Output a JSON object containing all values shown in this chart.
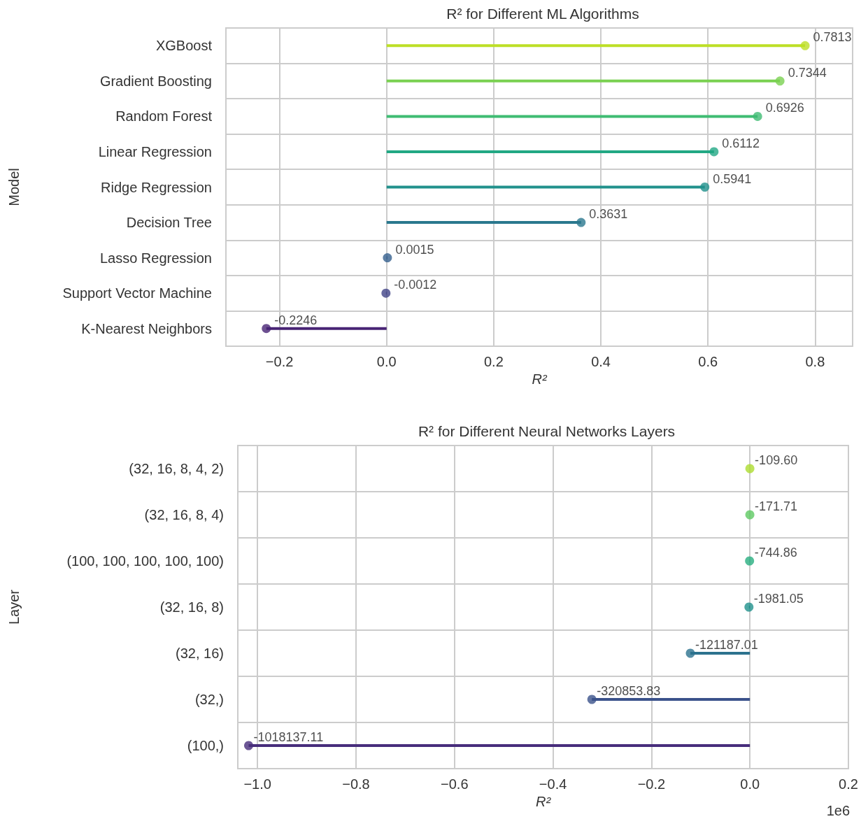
{
  "chart_data": [
    {
      "type": "lollipop",
      "orientation": "horizontal",
      "title": "R² for Different ML Algorithms",
      "xlabel": "R²",
      "ylabel": "Model",
      "categories": [
        "XGBoost",
        "Gradient Boosting",
        "Random Forest",
        "Linear Regression",
        "Ridge Regression",
        "Decision Tree",
        "Lasso Regression",
        "Support Vector Machine",
        "K-Nearest Neighbors"
      ],
      "values": [
        0.7813,
        0.7344,
        0.6926,
        0.6112,
        0.5941,
        0.3631,
        0.0015,
        -0.0012,
        -0.2246
      ],
      "value_labels": [
        "0.7813",
        "0.7344",
        "0.6926",
        "0.6112",
        "0.5941",
        "0.3631",
        "0.0015",
        "-0.0012",
        "-0.2246"
      ],
      "colors": [
        "#bddf26",
        "#7ad151",
        "#3fbc73",
        "#22a884",
        "#21918c",
        "#2a788e",
        "#355f8d",
        "#414487",
        "#482475"
      ],
      "xlim": [
        -0.3,
        0.87
      ],
      "xticks": [
        {
          "value": -0.2,
          "label": "−0.2"
        },
        {
          "value": 0,
          "label": "0.0"
        },
        0.2,
        0.4,
        0.6,
        0.8
      ],
      "grid": true,
      "marker": "circle"
    },
    {
      "type": "lollipop",
      "orientation": "horizontal",
      "title": "R² for Different Neural Networks Layers",
      "xlabel": "R²",
      "ylabel": "Layer",
      "categories": [
        "(32, 16, 8, 4, 2)",
        "(32, 16, 8, 4)",
        "(100, 100, 100, 100, 100)",
        "(32, 16, 8)",
        "(32, 16)",
        "(32,)",
        "(100,)"
      ],
      "values": [
        -0.00011,
        -0.00017,
        -0.00074,
        -0.002,
        -0.121,
        -0.321,
        -1.018
      ],
      "colors": [
        "#addc30",
        "#5ec962",
        "#28ae80",
        "#21918c",
        "#2c728e",
        "#3b528b",
        "#472d7b"
      ],
      "xlim": [
        -1.04,
        0.2
      ],
      "xticks": [
        {
          "value": -1.0,
          "label": "−1.0"
        },
        {
          "value": -0.8,
          "label": "−0.8"
        },
        {
          "value": -0.6,
          "label": "−0.6"
        },
        {
          "value": -0.4,
          "label": "−0.4"
        },
        {
          "value": -0.2,
          "label": "−0.2"
        },
        {
          "value": 0,
          "label": "0.0"
        },
        0.2
      ],
      "annotations": [
        "1e6",
        {
          "text": "-109.60",
          "x": -0.00011,
          "y": "(32, 16, 8, 4, 2)"
        },
        {
          "text": "-171.71",
          "x": -0.00017,
          "y": "(32, 16, 8, 4)"
        },
        {
          "text": "-744.86",
          "x": -0.00074,
          "y": "(100, 100, 100, 100, 100)"
        },
        {
          "text": "-1981.05",
          "x": -0.002,
          "y": "(32, 16, 8)"
        },
        {
          "text": "-121187.01",
          "x": -0.121,
          "y": "(32, 16)"
        },
        {
          "text": "-320853.83",
          "x": -0.321,
          "y": "(32,)"
        },
        {
          "text": "-1018137.11",
          "x": -1.018,
          "y": "(100,)"
        }
      ],
      "grid": true,
      "marker": "circle"
    }
  ]
}
